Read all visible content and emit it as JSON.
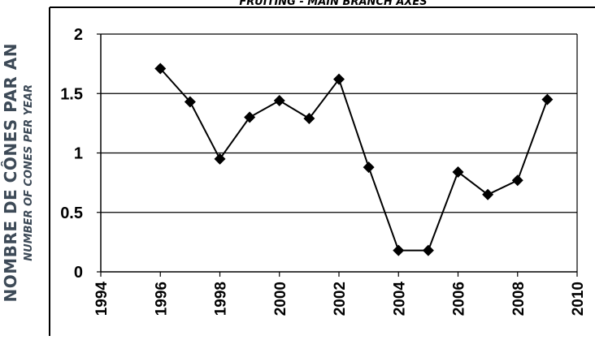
{
  "chart_title": "FRUITING - MAIN BRANCH AXES",
  "ylabel_fr": "NOMBRE DE CÔNES PAR AN",
  "ylabel_en": "NUMBER OF CONES PER YEAR",
  "chart_data": {
    "type": "line",
    "title": "FRUITING - MAIN BRANCH AXES",
    "xlabel": "",
    "ylabel": "NOMBRE DE CÔNES PAR AN / NUMBER OF CONES PER YEAR",
    "xlim": [
      1994,
      2010
    ],
    "ylim": [
      0,
      2
    ],
    "xticks": [
      "1994",
      "1996",
      "1998",
      "2000",
      "2002",
      "2004",
      "2006",
      "2008",
      "2010"
    ],
    "yticks": [
      "0",
      "0.5",
      "1",
      "1.5",
      "2"
    ],
    "grid": "horizontal",
    "series": [
      {
        "marker": "diamond",
        "color": "#000000",
        "x": [
          1996,
          1997,
          1998,
          1999,
          2000,
          2001,
          2002,
          2003,
          2004,
          2005,
          2006,
          2007,
          2008,
          2009
        ],
        "y": [
          1.71,
          1.43,
          0.95,
          1.3,
          1.44,
          1.29,
          1.62,
          0.88,
          0.18,
          0.18,
          0.84,
          0.65,
          0.77,
          1.45
        ]
      }
    ]
  }
}
